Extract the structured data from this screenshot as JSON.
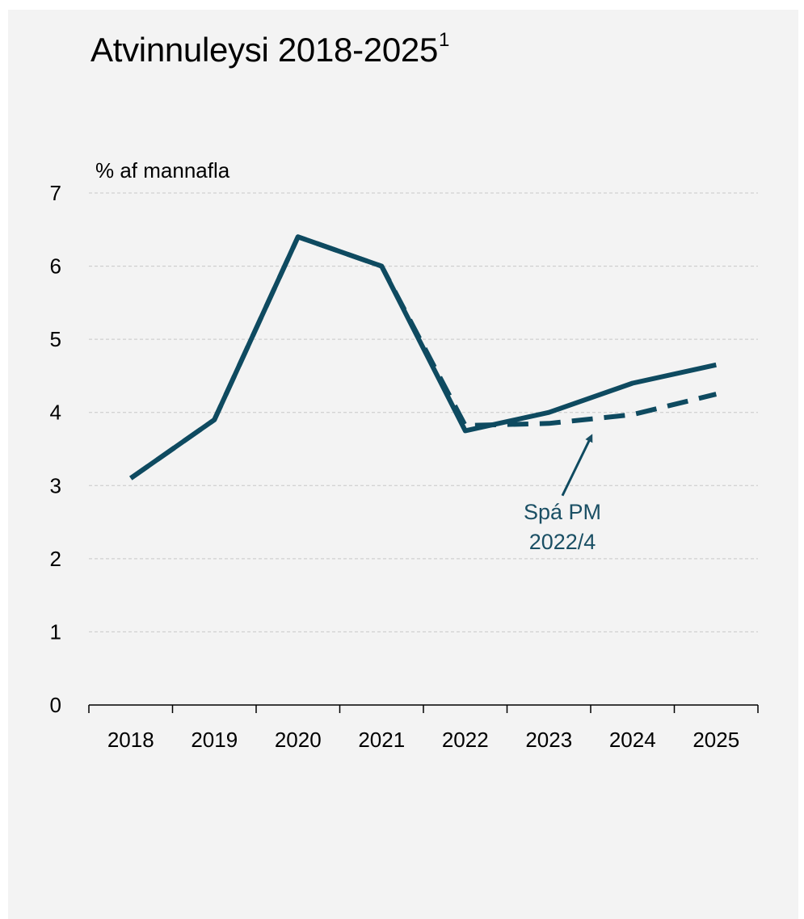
{
  "chart_data": {
    "type": "line",
    "title": "Atvinnuleysi 2018-2025",
    "title_footnote": "1",
    "ylabel": "% af mannafla",
    "xlabel": "",
    "x": [
      "2018",
      "2019",
      "2020",
      "2021",
      "2022",
      "2023",
      "2024",
      "2025"
    ],
    "ylim": [
      0,
      7
    ],
    "yticks": [
      "0",
      "1",
      "2",
      "3",
      "4",
      "5",
      "6",
      "7"
    ],
    "grid": "horizontal-dashed",
    "series": [
      {
        "values": [
          3.1,
          3.9,
          6.4,
          6.0,
          3.75,
          4.0,
          4.4,
          4.65
        ],
        "color": "#0e4a60",
        "style": "solid"
      },
      {
        "values": [
          3.1,
          3.9,
          6.4,
          6.0,
          3.82,
          3.85,
          3.97,
          4.25
        ],
        "color": "#0e4a60",
        "style": "dashed"
      }
    ],
    "annotations": [
      {
        "lines": [
          "Spá PM",
          "2022/4"
        ],
        "points_to_series": 1,
        "at_x": "2023.5",
        "color": "#1a4f64"
      }
    ]
  }
}
